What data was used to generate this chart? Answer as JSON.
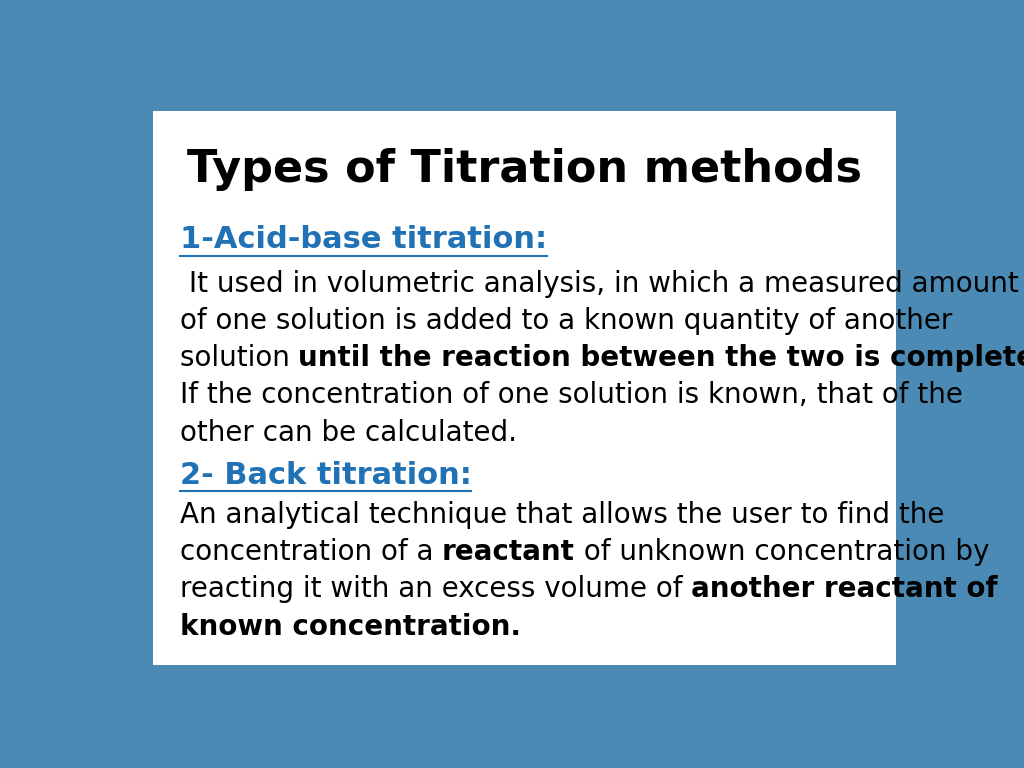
{
  "title": "Types of Titration methods",
  "title_fontsize": 32,
  "title_color": "#000000",
  "background_outer": "#4a8ab5",
  "background_inner": "#ffffff",
  "heading1": "1-Acid-base titration:",
  "heading1_color": "#2171b5",
  "heading1_fontsize": 22,
  "text1_fontsize": 20,
  "text1_color": "#000000",
  "heading2": "2- Back titration:",
  "heading2_color": "#2171b5",
  "heading2_fontsize": 22,
  "text2_fontsize": 20,
  "text2_color": "#000000",
  "lines_text1": [
    [
      [
        " It used in volumetric analysis, in which a measured amount",
        false
      ]
    ],
    [
      [
        "of one solution is added to a known quantity of another",
        false
      ]
    ],
    [
      [
        "solution ",
        false
      ],
      [
        "until the reaction between the two is complete.",
        true
      ]
    ],
    [
      [
        "If the concentration of one solution is known, that of the",
        false
      ]
    ],
    [
      [
        "other can be calculated.",
        false
      ]
    ]
  ],
  "lines_text2": [
    [
      [
        "An analytical technique that allows the user to find the",
        false
      ]
    ],
    [
      [
        "concentration of a ",
        false
      ],
      [
        "reactant",
        true
      ],
      [
        " of unknown concentration by",
        false
      ]
    ],
    [
      [
        "reacting it with an excess volume of ",
        false
      ],
      [
        "another reactant of",
        true
      ]
    ],
    [
      [
        "known concentration.",
        true
      ]
    ]
  ]
}
